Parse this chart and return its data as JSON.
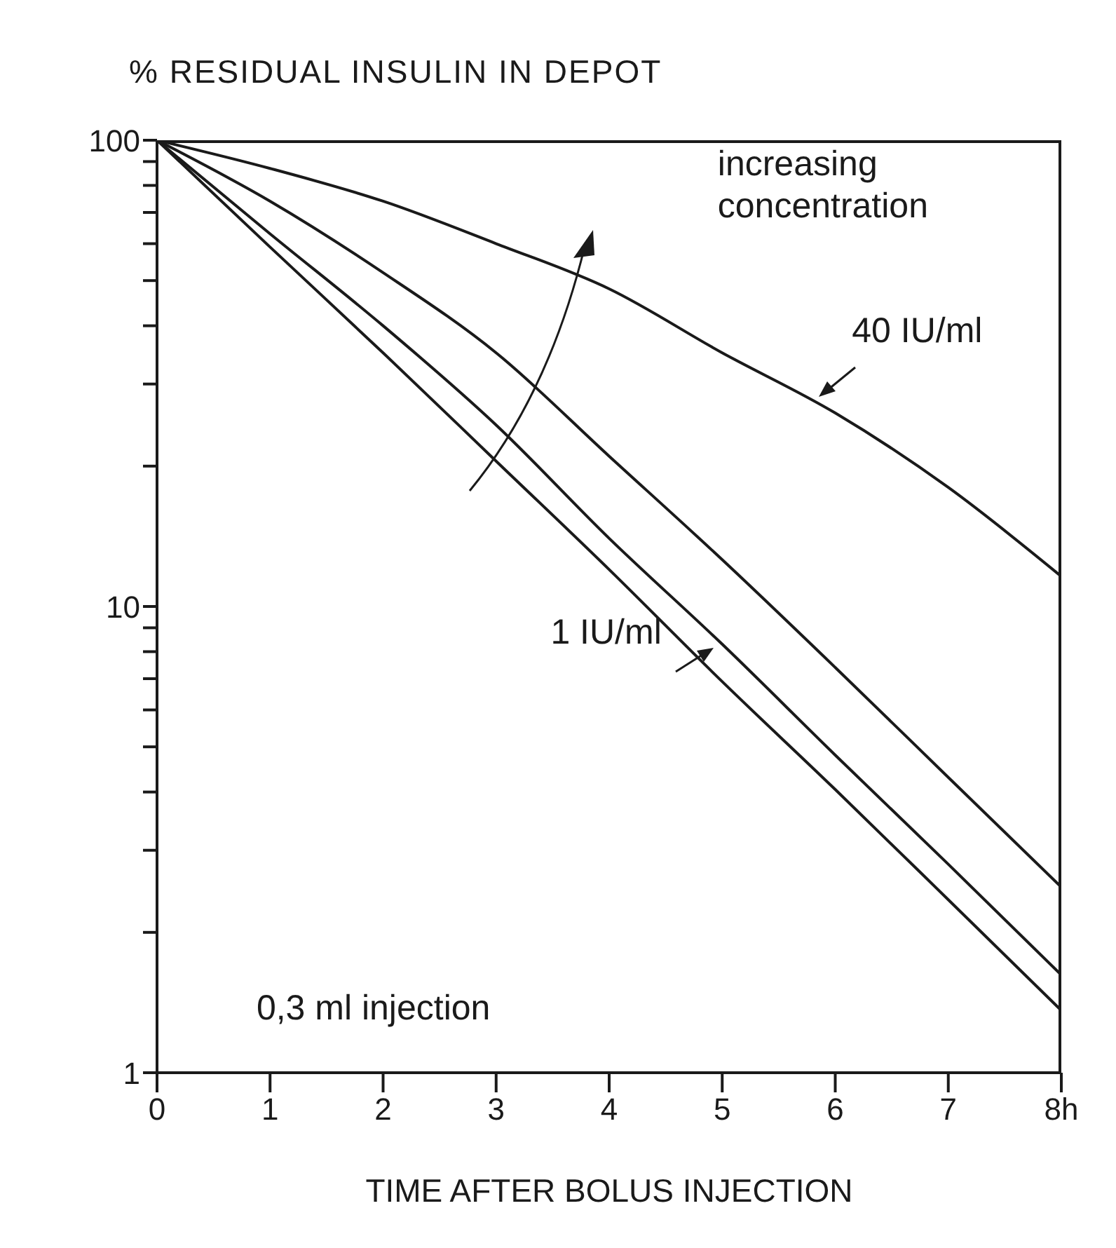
{
  "chart_data": {
    "type": "line",
    "ylabel": "% RESIDUAL INSULIN IN DEPOT",
    "xlabel": "TIME AFTER BOLUS INJECTION",
    "x": [
      0,
      1,
      2,
      3,
      4,
      5,
      6,
      7,
      8
    ],
    "series": [
      {
        "name": "40 IU/ml",
        "color": "#1a1a1a",
        "values": [
          100,
          87,
          74,
          60,
          48,
          35,
          26,
          18,
          11.6
        ]
      },
      {
        "color": "#1a1a1a",
        "values": [
          100,
          74,
          52,
          35,
          21,
          12.6,
          7.4,
          4.3,
          2.5
        ]
      },
      {
        "color": "#1a1a1a",
        "values": [
          100,
          63,
          40,
          24.5,
          14,
          8.3,
          4.8,
          2.8,
          1.62
        ]
      },
      {
        "name": "1 IU/ml",
        "color": "#1a1a1a",
        "values": [
          100,
          59,
          35,
          20.5,
          12,
          6.9,
          4.05,
          2.35,
          1.36
        ]
      }
    ],
    "log": "y",
    "marker": "none",
    "xlim": [
      0,
      8
    ],
    "xticks": [
      0,
      1,
      2,
      3,
      4,
      5,
      6,
      7,
      {
        "value": 8,
        "label": "8h"
      }
    ],
    "ylim": [
      1,
      100
    ],
    "yticks": [
      1,
      {
        "value": 2,
        "label": null
      },
      {
        "value": 3,
        "label": null
      },
      {
        "value": 4,
        "label": null
      },
      {
        "value": 5,
        "label": null
      },
      {
        "value": 6,
        "label": null
      },
      {
        "value": 7,
        "label": null
      },
      {
        "value": 8,
        "label": null
      },
      {
        "value": 9,
        "label": null
      },
      10,
      {
        "value": 20,
        "label": null
      },
      {
        "value": 30,
        "label": null
      },
      {
        "value": 40,
        "label": null
      },
      {
        "value": 50,
        "label": null
      },
      {
        "value": 60,
        "label": null
      },
      {
        "value": 70,
        "label": null
      },
      {
        "value": 80,
        "label": null
      },
      {
        "value": 90,
        "label": null
      },
      100
    ],
    "annotations": [
      "increasing concentration",
      "0,3 ml injection"
    ]
  }
}
